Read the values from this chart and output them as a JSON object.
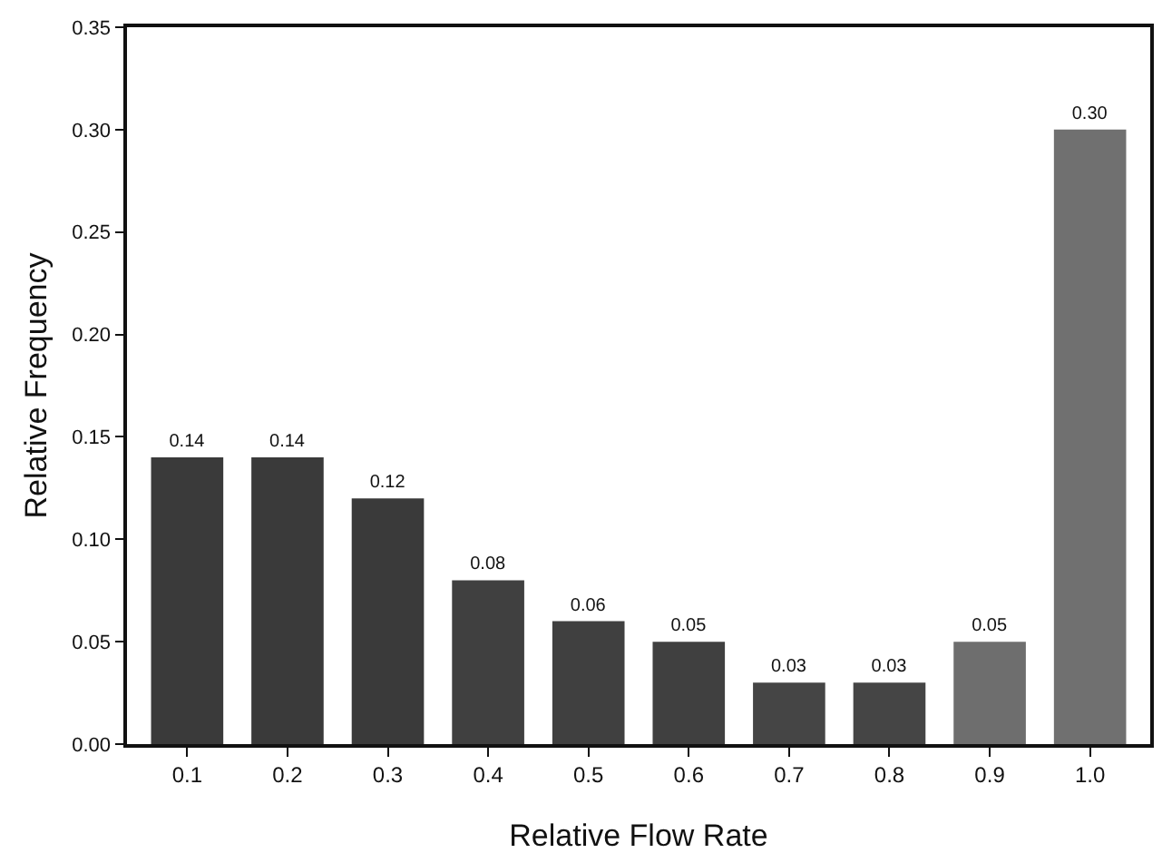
{
  "chart_data": {
    "type": "bar",
    "xlabel": "Relative Flow Rate",
    "ylabel": "Relative Frequency",
    "categories": [
      "0.1",
      "0.2",
      "0.3",
      "0.4",
      "0.5",
      "0.6",
      "0.7",
      "0.8",
      "0.9",
      "1.0"
    ],
    "values": [
      0.14,
      0.14,
      0.12,
      0.08,
      0.06,
      0.05,
      0.03,
      0.03,
      0.05,
      0.3
    ],
    "value_labels": [
      "0.14",
      "0.14",
      "0.12",
      "0.08",
      "0.06",
      "0.05",
      "0.03",
      "0.03",
      "0.05",
      "0.30"
    ],
    "colors": [
      "#3a3a3a",
      "#3a3a3a",
      "#3a3a3a",
      "#404040",
      "#404040",
      "#404040",
      "#454545",
      "#454545",
      "#6e6e6e",
      "#707070"
    ],
    "ylim": [
      0,
      0.35
    ],
    "yticks": [
      {
        "value": 0,
        "label": "0.00"
      },
      {
        "value": 0.05,
        "label": "0.05"
      },
      {
        "value": 0.1,
        "label": "0.10"
      },
      {
        "value": 0.15,
        "label": "0.15"
      },
      {
        "value": 0.2,
        "label": "0.20"
      },
      {
        "value": 0.25,
        "label": "0.25"
      },
      {
        "value": 0.3,
        "label": "0.30"
      },
      {
        "value": 0.35,
        "label": "0.35"
      }
    ],
    "grid": false
  }
}
